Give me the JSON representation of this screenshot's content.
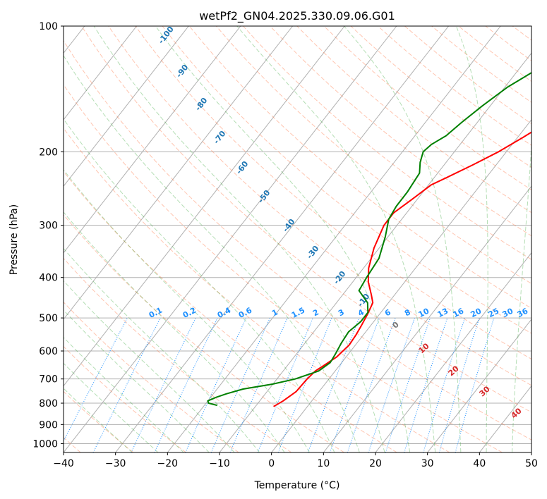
{
  "chart_data": {
    "type": "line",
    "title": "wetPf2_GN04.2025.330.09.06.G01",
    "xlabel": "Temperature (°C)",
    "ylabel": "Pressure (hPa)",
    "xlim": [
      -40,
      50
    ],
    "ylim": [
      1050,
      100
    ],
    "x_ticks": [
      "−40",
      "−30",
      "−20",
      "−10",
      "0",
      "10",
      "20",
      "30",
      "40",
      "50"
    ],
    "y_ticks": [
      "1000",
      "900",
      "800",
      "700",
      "600",
      "500",
      "400",
      "300",
      "200",
      "100"
    ],
    "isotherm_labels": [
      "-100",
      "-90",
      "-80",
      "-70",
      "-60",
      "-50",
      "-40",
      "-30",
      "-20",
      "-10"
    ],
    "mixing_ratio_labels": [
      "0.1",
      "0.2",
      "0.4",
      "0.6",
      "1",
      "1.5",
      "2",
      "3",
      "4",
      "6",
      "8",
      "10",
      "13",
      "16",
      "20",
      "25",
      "30",
      "36"
    ],
    "moist_adiabat_labels": [
      "0",
      "10",
      "20",
      "30",
      "40"
    ],
    "colors": {
      "temperature": "#ff0000",
      "dewpoint": "#008000",
      "isotherm_label": "#1f77b4",
      "mixing_ratio": "#1e90ff",
      "dry_adiabat": "#ff7f50",
      "moist_adiabat": "#2ca02c",
      "moist_label": "#d62728",
      "grid": "#b0b0b0"
    },
    "series": [
      {
        "name": "Temperature",
        "points": [
          [
            815,
            -6.5
          ],
          [
            790,
            -5.5
          ],
          [
            750,
            -4.4
          ],
          [
            700,
            -4.2
          ],
          [
            670,
            -3.8
          ],
          [
            650,
            -3.0
          ],
          [
            620,
            -1.8
          ],
          [
            580,
            -1.2
          ],
          [
            550,
            -1.4
          ],
          [
            520,
            -1.8
          ],
          [
            490,
            -2.3
          ],
          [
            460,
            -3.0
          ],
          [
            440,
            -4.5
          ],
          [
            410,
            -7.0
          ],
          [
            380,
            -9.0
          ],
          [
            340,
            -11.0
          ],
          [
            300,
            -12.5
          ],
          [
            280,
            -12.5
          ],
          [
            260,
            -11.0
          ],
          [
            240,
            -9.5
          ],
          [
            230,
            -7.5
          ],
          [
            215,
            -4.5
          ],
          [
            200,
            -1.5
          ],
          [
            185,
            1.0
          ],
          [
            170,
            3.5
          ],
          [
            155,
            7.5
          ],
          [
            140,
            12.5
          ],
          [
            128,
            16.5
          ],
          [
            117,
            20.5
          ],
          [
            109,
            24.5
          ],
          [
            103,
            27.5
          ],
          [
            100,
            28.5
          ]
        ]
      },
      {
        "name": "Dewpoint",
        "points": [
          [
            810,
            -17.5
          ],
          [
            800,
            -19.5
          ],
          [
            790,
            -20.0
          ],
          [
            775,
            -19.0
          ],
          [
            760,
            -17.5
          ],
          [
            740,
            -15.0
          ],
          [
            720,
            -10.0
          ],
          [
            700,
            -6.5
          ],
          [
            670,
            -3.2
          ],
          [
            640,
            -2.2
          ],
          [
            610,
            -2.5
          ],
          [
            575,
            -3.0
          ],
          [
            540,
            -3.3
          ],
          [
            510,
            -2.5
          ],
          [
            485,
            -2.5
          ],
          [
            460,
            -4.0
          ],
          [
            430,
            -7.5
          ],
          [
            400,
            -8.0
          ],
          [
            360,
            -8.5
          ],
          [
            320,
            -10.5
          ],
          [
            290,
            -12.5
          ],
          [
            270,
            -13.0
          ],
          [
            250,
            -13.0
          ],
          [
            225,
            -13.5
          ],
          [
            212,
            -15.0
          ],
          [
            200,
            -16.0
          ],
          [
            192,
            -15.5
          ],
          [
            183,
            -14.0
          ],
          [
            170,
            -13.0
          ],
          [
            155,
            -11.5
          ],
          [
            140,
            -9.5
          ],
          [
            125,
            -6.0
          ],
          [
            112,
            -3.0
          ],
          [
            104,
            -2.0
          ],
          [
            100,
            -1.0
          ]
        ]
      }
    ]
  }
}
